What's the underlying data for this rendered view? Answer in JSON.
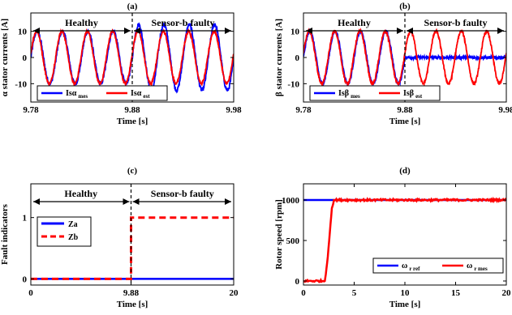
{
  "chart_data": [
    {
      "id": "a",
      "type": "line",
      "title": "(a)",
      "xlabel": "Time [s]",
      "ylabel": "α stator currents [A]",
      "xlim": [
        9.78,
        9.98
      ],
      "ylim": [
        -17,
        17
      ],
      "xticks": [
        "9.78",
        "9.88",
        "9.98"
      ],
      "xtick_values": [
        9.78,
        9.88,
        9.98
      ],
      "yticks": [
        "10",
        "0",
        "-10"
      ],
      "ytick_values": [
        10,
        0,
        -10
      ],
      "event_x": 9.88,
      "regions": {
        "left": "Healthy",
        "right": "Sensor-b faulty"
      },
      "legend": [
        {
          "text": "Isα",
          "sub": "mes",
          "color": "#0000ff"
        },
        {
          "text": "Isα",
          "sub": "est",
          "color": "#ff0000"
        }
      ],
      "series": [
        {
          "name": "Isα mes",
          "color": "#0000ff",
          "amplitude": 10,
          "amplitude_after": 12.5,
          "frequency_hz": 40,
          "noise": 0.8
        },
        {
          "name": "Isα est",
          "color": "#ff0000",
          "amplitude": 10,
          "amplitude_after": 10,
          "frequency_hz": 40,
          "noise": 0.5
        }
      ],
      "legend_position": "bottom-left"
    },
    {
      "id": "b",
      "type": "line",
      "title": "(b)",
      "xlabel": "Time [s]",
      "ylabel": "β stator currents [A]",
      "xlim": [
        9.78,
        9.98
      ],
      "ylim": [
        -17,
        17
      ],
      "xticks": [
        "9.78",
        "9.88",
        "9.98"
      ],
      "xtick_values": [
        9.78,
        9.88,
        9.98
      ],
      "yticks": [
        "10",
        "0",
        "-10"
      ],
      "ytick_values": [
        10,
        0,
        -10
      ],
      "event_x": 9.88,
      "regions": {
        "left": "Healthy",
        "right": "Sensor-b faulty"
      },
      "legend": [
        {
          "text": "Isβ",
          "sub": "mes",
          "color": "#0000ff"
        },
        {
          "text": "Isβ",
          "sub": "est",
          "color": "#ff0000"
        }
      ],
      "series": [
        {
          "name": "Isβ mes",
          "color": "#0000ff",
          "amplitude": 10,
          "amplitude_after": 0,
          "frequency_hz": 40,
          "noise": 0.6
        },
        {
          "name": "Isβ est",
          "color": "#ff0000",
          "amplitude": 10,
          "amplitude_after": 10,
          "frequency_hz": 40,
          "noise": 0.6
        }
      ],
      "legend_position": "bottom-left"
    },
    {
      "id": "c",
      "type": "line",
      "title": "(c)",
      "xlabel": "Time [s]",
      "ylabel": "Fault indicators",
      "xlim": [
        0,
        20
      ],
      "ylim": [
        -0.1,
        1.55
      ],
      "xticks": [
        "0",
        "9.88",
        "20"
      ],
      "xtick_values": [
        0,
        9.88,
        20
      ],
      "yticks": [
        "1",
        "0"
      ],
      "ytick_values": [
        1,
        0
      ],
      "event_x": 9.88,
      "regions": {
        "left": "Healthy",
        "right": "Sensor-b faulty"
      },
      "legend": [
        {
          "text": "Za",
          "sub": "",
          "color": "#0000ff",
          "dashed": false
        },
        {
          "text": "Zb",
          "sub": "",
          "color": "#ff0000",
          "dashed": true
        }
      ],
      "series": [
        {
          "name": "Za",
          "color": "#0000ff",
          "dashed": false,
          "points": [
            [
              0,
              0
            ],
            [
              20,
              0
            ]
          ]
        },
        {
          "name": "Zb",
          "color": "#ff0000",
          "dashed": true,
          "points": [
            [
              0,
              0
            ],
            [
              9.88,
              0
            ],
            [
              9.88,
              1
            ],
            [
              20,
              1
            ]
          ]
        }
      ],
      "legend_position": "middle-left"
    },
    {
      "id": "d",
      "type": "line",
      "title": "(d)",
      "xlabel": "Time [s]",
      "ylabel": "Rotor speed [rpm]",
      "xlim": [
        0,
        20
      ],
      "ylim": [
        -50,
        1200
      ],
      "xticks": [
        "0",
        "5",
        "10",
        "15",
        "20"
      ],
      "xtick_values": [
        0,
        5,
        10,
        15,
        20
      ],
      "yticks": [
        "1000",
        "500",
        "0"
      ],
      "ytick_values": [
        1000,
        500,
        0
      ],
      "legend": [
        {
          "text": "ω",
          "sub": "r ref",
          "color": "#0000ff"
        },
        {
          "text": "ω",
          "sub": "r mes",
          "color": "#ff0000"
        }
      ],
      "series": [
        {
          "name": "ω r ref",
          "color": "#0000ff",
          "points": [
            [
              0,
              1000
            ],
            [
              20,
              1000
            ]
          ]
        },
        {
          "name": "ω r mes",
          "color": "#ff0000",
          "points": [
            [
              0,
              0
            ],
            [
              2.1,
              0
            ],
            [
              2.2,
              80
            ],
            [
              2.4,
              300
            ],
            [
              2.6,
              600
            ],
            [
              2.8,
              900
            ],
            [
              3.0,
              1000
            ],
            [
              20,
              1000
            ]
          ],
          "noise": 12
        }
      ],
      "legend_position": "bottom-right"
    }
  ]
}
